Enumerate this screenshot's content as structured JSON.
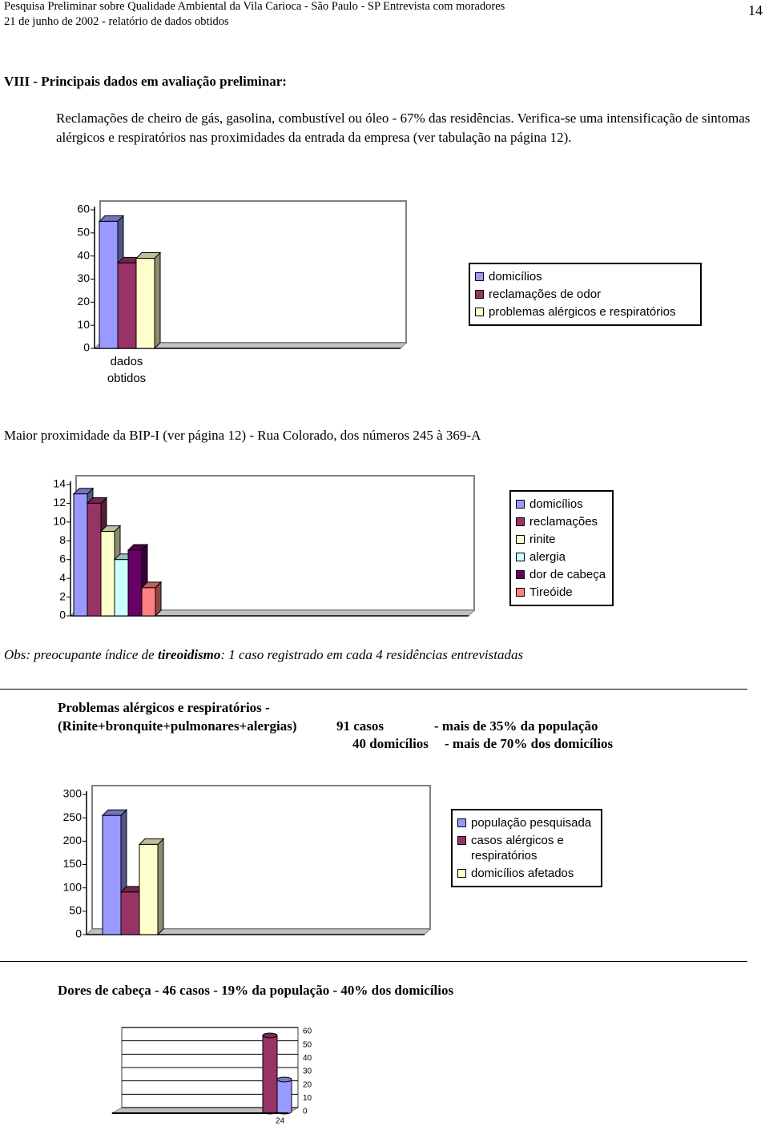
{
  "header": {
    "title": "Pesquisa Preliminar sobre Qualidade Ambiental da Vila Carioca - São Paulo - SP Entrevista com  moradores",
    "subtitle": "21 de junho de 2002 - relatório de dados obtidos",
    "page": "14"
  },
  "section_title": "VIII - Principais dados em avaliação preliminar:",
  "paragraph": "Reclamações de cheiro de gás, gasolina, combustível ou óleo - 67% das residências. Verifica-se uma intensificação de sintomas alérgicos e respiratórios nas proximidades da entrada da empresa (ver tabulação na página 12).",
  "heading_2": "Maior proximidade da BIP-I  (ver página 12) - Rua Colorado, dos números 245 à 369-A",
  "obs": [
    "Obs: preocupante índice de ",
    "tireoidismo",
    ": 1 caso registrado em cada 4 residências entrevistadas"
  ],
  "summary": {
    "line_1": "Problemas alérgicos e respiratórios -",
    "line_2": "(Rinite+bronquite+pulmonares+alergias)",
    "cases": "91 casos",
    "cases_note": "- mais de 35% da população",
    "homes": "40 domicílios",
    "homes_note": "- mais de 70% dos domicílios"
  },
  "heading_4": "Dores de cabeça - 46 casos - 19% da população - 40% dos domicílios",
  "chart_data": [
    {
      "type": "bar",
      "categories": [
        "dados obtidos"
      ],
      "ylim": [
        0,
        60
      ],
      "yticks": [
        0,
        10,
        20,
        30,
        40,
        50,
        60
      ],
      "grid": false,
      "series": [
        {
          "name": "domicílios",
          "color": "#9999ff",
          "values": [
            55
          ]
        },
        {
          "name": "reclamações de odor",
          "color": "#993366",
          "values": [
            37
          ]
        },
        {
          "name": "problemas alérgicos e respiratórios",
          "color": "#ffffcc",
          "values": [
            39
          ]
        }
      ]
    },
    {
      "type": "bar",
      "categories": [
        null
      ],
      "ylim": [
        0,
        14
      ],
      "yticks": [
        0,
        2,
        4,
        6,
        8,
        10,
        12,
        14
      ],
      "grid": false,
      "series": [
        {
          "name": "domicílios",
          "color": "#9999ff",
          "values": [
            13
          ]
        },
        {
          "name": "reclamações",
          "color": "#993366",
          "values": [
            12
          ]
        },
        {
          "name": "rinite",
          "color": "#ffffcc",
          "values": [
            9
          ]
        },
        {
          "name": "alergia",
          "color": "#ccffff",
          "values": [
            6
          ]
        },
        {
          "name": "dor de cabeça",
          "color": "#660066",
          "values": [
            7
          ]
        },
        {
          "name": "Tireóide",
          "color": "#ff8080",
          "values": [
            3
          ]
        }
      ]
    },
    {
      "type": "bar",
      "categories": [
        null
      ],
      "ylim": [
        0,
        300
      ],
      "yticks": [
        0,
        50,
        100,
        150,
        200,
        250,
        300
      ],
      "grid": false,
      "series": [
        {
          "name": "população pesquisada",
          "color": "#9999ff",
          "values": [
            255
          ]
        },
        {
          "name": "casos alérgicos e respiratórios",
          "color": "#993366",
          "values": [
            91
          ]
        },
        {
          "name": "domicílios afetados",
          "color": "#ffffcc",
          "values": [
            193
          ]
        }
      ]
    },
    {
      "type": "cylinder",
      "categories": [
        "24"
      ],
      "ylim": [
        0,
        60
      ],
      "yticks": [
        0,
        10,
        20,
        30,
        40,
        50,
        60
      ],
      "grid": true,
      "series": [
        {
          "color": "#993366",
          "values": [
            57
          ]
        },
        {
          "color": "#9999ff",
          "values": [
            24
          ]
        }
      ]
    }
  ]
}
